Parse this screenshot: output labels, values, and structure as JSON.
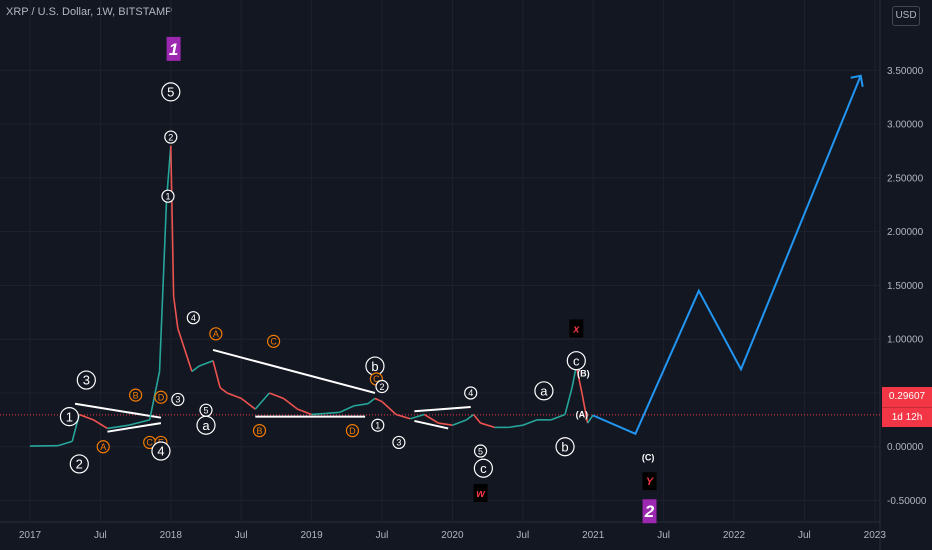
{
  "header": {
    "title": "XRP / U.S. Dollar, 1W, BITSTAMP",
    "currency_button": "USD"
  },
  "price_label": {
    "value": "0.29607",
    "countdown": "1d 12h"
  },
  "colors": {
    "background": "#131722",
    "up": "#26a69a",
    "down": "#ef5350",
    "projection": "#2196f3",
    "price_line": "#f23645",
    "purple_box": "#9c27b0"
  },
  "chart_data": {
    "type": "line",
    "title": "XRP / U.S. Dollar, 1W, BITSTAMP",
    "ylim": [
      -0.7,
      3.95
    ],
    "xlim": [
      2017.0,
      2023.25
    ],
    "y_ticks": [
      {
        "v": 3.5,
        "label": "3.50000"
      },
      {
        "v": 3.0,
        "label": "3.00000"
      },
      {
        "v": 2.5,
        "label": "2.50000"
      },
      {
        "v": 2.0,
        "label": "2.00000"
      },
      {
        "v": 1.5,
        "label": "1.50000"
      },
      {
        "v": 1.0,
        "label": "1.00000"
      },
      {
        "v": 0.5,
        "label": "0.50000"
      },
      {
        "v": 0.0,
        "label": "0.00000"
      },
      {
        "v": -0.5,
        "label": "-0.50000"
      }
    ],
    "x_ticks": [
      {
        "v": 2017.0,
        "label": "2017"
      },
      {
        "v": 2017.5,
        "label": "Jul"
      },
      {
        "v": 2018.0,
        "label": "2018"
      },
      {
        "v": 2018.5,
        "label": "Jul"
      },
      {
        "v": 2019.0,
        "label": "2019"
      },
      {
        "v": 2019.5,
        "label": "Jul"
      },
      {
        "v": 2020.0,
        "label": "2020"
      },
      {
        "v": 2020.5,
        "label": "Jul"
      },
      {
        "v": 2021.0,
        "label": "2021"
      },
      {
        "v": 2021.5,
        "label": "Jul"
      },
      {
        "v": 2022.0,
        "label": "2022"
      },
      {
        "v": 2022.5,
        "label": "Jul"
      },
      {
        "v": 2023.0,
        "label": "2023"
      }
    ],
    "series": [
      {
        "x": [
          2017.0,
          2017.2,
          2017.3,
          2017.35,
          2017.45,
          2017.55,
          2017.7,
          2017.85,
          2017.92,
          2017.97,
          2018.0,
          2018.02,
          2018.05,
          2018.1,
          2018.15,
          2018.2,
          2018.3,
          2018.35,
          2018.4,
          2018.5,
          2018.6,
          2018.7,
          2018.8,
          2018.9,
          2019.0,
          2019.1,
          2019.2,
          2019.3,
          2019.4,
          2019.45,
          2019.5,
          2019.6,
          2019.7,
          2019.8,
          2019.9,
          2020.0,
          2020.1,
          2020.15,
          2020.2,
          2020.3,
          2020.4,
          2020.5,
          2020.6,
          2020.7,
          2020.8,
          2020.85,
          2020.88,
          2020.92,
          2020.96,
          2021.0
        ],
        "y": [
          0.006,
          0.01,
          0.05,
          0.3,
          0.25,
          0.17,
          0.2,
          0.25,
          0.7,
          2.3,
          2.8,
          1.4,
          1.1,
          0.9,
          0.7,
          0.75,
          0.8,
          0.55,
          0.5,
          0.45,
          0.35,
          0.5,
          0.45,
          0.35,
          0.3,
          0.31,
          0.32,
          0.38,
          0.4,
          0.45,
          0.42,
          0.3,
          0.26,
          0.3,
          0.22,
          0.2,
          0.25,
          0.3,
          0.22,
          0.18,
          0.18,
          0.2,
          0.25,
          0.25,
          0.3,
          0.55,
          0.75,
          0.5,
          0.22,
          0.296
        ]
      }
    ],
    "projection": {
      "x": [
        2021.0,
        2021.3,
        2021.75,
        2022.05,
        2022.9
      ],
      "y": [
        0.29,
        0.12,
        1.45,
        0.72,
        3.45
      ]
    },
    "price_line": 0.29607,
    "trendlines": [
      {
        "x1": 2017.32,
        "y1": 0.4,
        "x2": 2017.93,
        "y2": 0.27
      },
      {
        "x1": 2017.55,
        "y1": 0.14,
        "x2": 2017.93,
        "y2": 0.22
      },
      {
        "x1": 2018.3,
        "y1": 0.9,
        "x2": 2019.45,
        "y2": 0.5
      },
      {
        "x1": 2018.6,
        "y1": 0.28,
        "x2": 2019.38,
        "y2": 0.28
      },
      {
        "x1": 2019.73,
        "y1": 0.33,
        "x2": 2020.13,
        "y2": 0.37
      },
      {
        "x1": 2019.73,
        "y1": 0.24,
        "x2": 2019.97,
        "y2": 0.17
      }
    ],
    "labels": [
      {
        "text": "1",
        "style": "purple",
        "x": 2018.02,
        "y": 3.7
      },
      {
        "text": "5",
        "style": "circle-white",
        "x": 2018.0,
        "y": 3.3
      },
      {
        "text": "2",
        "style": "circle-white-small",
        "x": 2018.0,
        "y": 2.88
      },
      {
        "text": "1",
        "style": "circle-white-small",
        "x": 2017.98,
        "y": 2.33
      },
      {
        "text": "4",
        "style": "circle-white-small",
        "x": 2018.16,
        "y": 1.2
      },
      {
        "text": "A",
        "style": "circle-orange-small",
        "x": 2018.32,
        "y": 1.05
      },
      {
        "text": "C",
        "style": "circle-orange-small",
        "x": 2018.73,
        "y": 0.98
      },
      {
        "text": "3",
        "style": "circle-white",
        "x": 2017.4,
        "y": 0.62
      },
      {
        "text": "B",
        "style": "circle-orange-small",
        "x": 2017.75,
        "y": 0.48
      },
      {
        "text": "D",
        "style": "circle-orange-small",
        "x": 2017.93,
        "y": 0.46
      },
      {
        "text": "3",
        "style": "circle-white-small",
        "x": 2018.05,
        "y": 0.44
      },
      {
        "text": "1",
        "style": "circle-white",
        "x": 2017.28,
        "y": 0.28
      },
      {
        "text": "A",
        "style": "circle-orange-small",
        "x": 2017.52,
        "y": 0.0
      },
      {
        "text": "C",
        "style": "circle-orange-small",
        "x": 2017.85,
        "y": 0.04
      },
      {
        "text": "E",
        "style": "circle-orange-small",
        "x": 2017.93,
        "y": 0.04
      },
      {
        "text": "4",
        "style": "circle-white",
        "x": 2017.93,
        "y": -0.04
      },
      {
        "text": "2",
        "style": "circle-white",
        "x": 2017.35,
        "y": -0.16
      },
      {
        "text": "a",
        "style": "circle-white",
        "x": 2018.25,
        "y": 0.2
      },
      {
        "text": "5",
        "style": "circle-white-small",
        "x": 2018.25,
        "y": 0.34
      },
      {
        "text": "B",
        "style": "circle-orange-small",
        "x": 2018.63,
        "y": 0.15
      },
      {
        "text": "D",
        "style": "circle-orange-small",
        "x": 2019.29,
        "y": 0.15
      },
      {
        "text": "b",
        "style": "circle-white",
        "x": 2019.45,
        "y": 0.75
      },
      {
        "text": "C",
        "style": "circle-orange-small",
        "x": 2019.46,
        "y": 0.63
      },
      {
        "text": "2",
        "style": "circle-white-small",
        "x": 2019.5,
        "y": 0.56
      },
      {
        "text": "1",
        "style": "circle-white-small",
        "x": 2019.47,
        "y": 0.2
      },
      {
        "text": "3",
        "style": "circle-white-small",
        "x": 2019.62,
        "y": 0.04
      },
      {
        "text": "4",
        "style": "circle-white-small",
        "x": 2020.13,
        "y": 0.5
      },
      {
        "text": "5",
        "style": "circle-white-small",
        "x": 2020.2,
        "y": -0.04
      },
      {
        "text": "c",
        "style": "circle-white",
        "x": 2020.22,
        "y": -0.2
      },
      {
        "text": "w",
        "style": "black-red",
        "x": 2020.2,
        "y": -0.43
      },
      {
        "text": "a",
        "style": "circle-white",
        "x": 2020.65,
        "y": 0.52
      },
      {
        "text": "b",
        "style": "circle-white",
        "x": 2020.8,
        "y": 0.0
      },
      {
        "text": "x",
        "style": "black-red",
        "x": 2020.88,
        "y": 1.1
      },
      {
        "text": "c",
        "style": "circle-white",
        "x": 2020.88,
        "y": 0.8
      },
      {
        "text": "(B)",
        "style": "plain",
        "x": 2020.93,
        "y": 0.68
      },
      {
        "text": "(A)",
        "style": "plain",
        "x": 2020.92,
        "y": 0.3
      },
      {
        "text": "(C)",
        "style": "plain",
        "x": 2021.39,
        "y": -0.1
      },
      {
        "text": "Y",
        "style": "black-red",
        "x": 2021.4,
        "y": -0.32
      },
      {
        "text": "2",
        "style": "purple",
        "x": 2021.4,
        "y": -0.6
      }
    ]
  }
}
